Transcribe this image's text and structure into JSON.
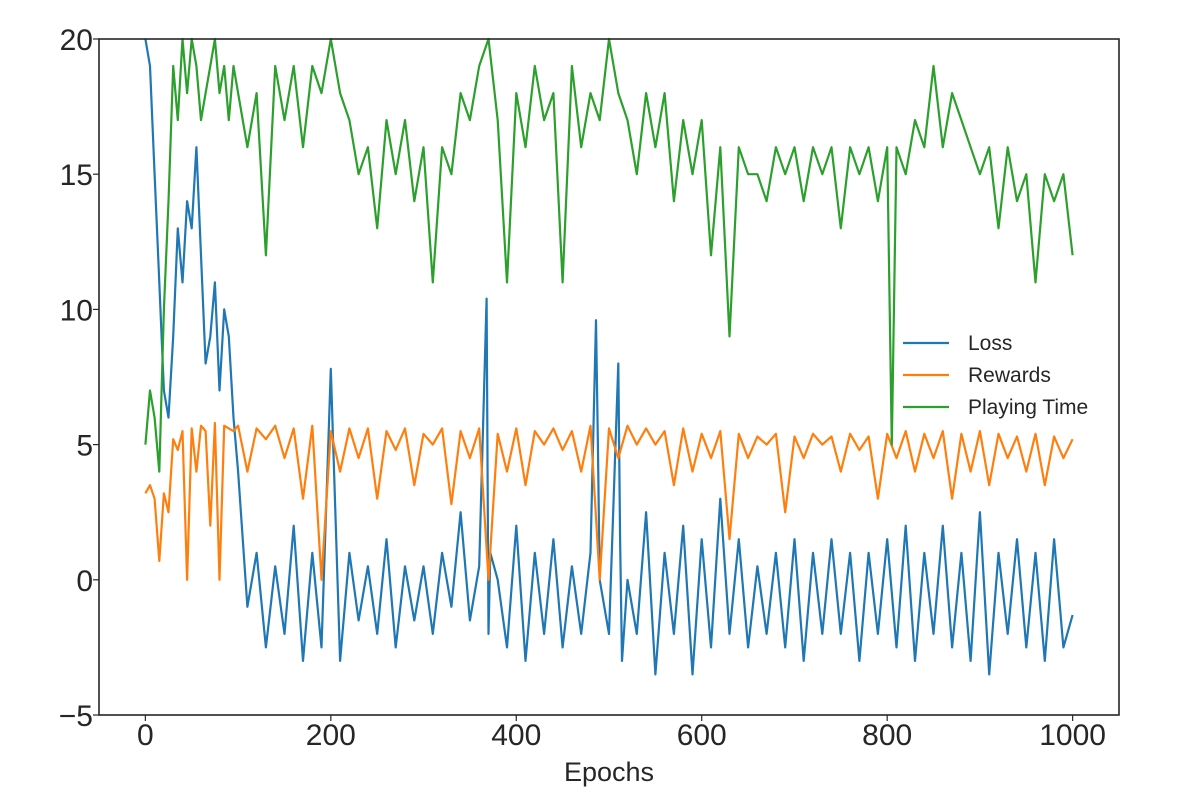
{
  "chart_data": {
    "type": "line",
    "title": "",
    "xlabel": "Epochs",
    "ylabel": "",
    "xlim": [
      -50,
      1050
    ],
    "ylim": [
      -5,
      20
    ],
    "xticks": [
      0,
      200,
      400,
      600,
      800,
      1000
    ],
    "yticks": [
      -5,
      0,
      5,
      10,
      15,
      20
    ],
    "xtick_labels": [
      "0",
      "200",
      "400",
      "600",
      "800",
      "1000"
    ],
    "ytick_labels": [
      "−5",
      "0",
      "5",
      "10",
      "15",
      "20"
    ],
    "grid": false,
    "legend_position": "center-right",
    "series": [
      {
        "name": "Loss",
        "color": "#1f77b4",
        "x": [
          0,
          5,
          10,
          15,
          20,
          25,
          30,
          35,
          40,
          45,
          50,
          55,
          60,
          65,
          70,
          75,
          80,
          85,
          90,
          95,
          100,
          110,
          120,
          130,
          140,
          150,
          160,
          170,
          180,
          190,
          200,
          210,
          220,
          230,
          240,
          250,
          260,
          270,
          280,
          290,
          300,
          310,
          320,
          330,
          340,
          350,
          360,
          368,
          370,
          372,
          380,
          390,
          400,
          410,
          420,
          430,
          440,
          450,
          460,
          470,
          480,
          486,
          488,
          490,
          500,
          510,
          512,
          514,
          520,
          530,
          540,
          550,
          560,
          570,
          580,
          590,
          600,
          610,
          620,
          630,
          640,
          650,
          660,
          670,
          680,
          690,
          700,
          710,
          720,
          730,
          740,
          750,
          760,
          770,
          780,
          790,
          800,
          810,
          820,
          830,
          840,
          850,
          860,
          870,
          880,
          890,
          900,
          910,
          920,
          930,
          940,
          950,
          960,
          970,
          980,
          990,
          1000
        ],
        "values": [
          20,
          19,
          15,
          11,
          7,
          6,
          9,
          13,
          11,
          14,
          13,
          16,
          12,
          8,
          9,
          11,
          7,
          10,
          9,
          6,
          4,
          -1,
          1,
          -2.5,
          0.5,
          -2,
          2,
          -3,
          1,
          -2.5,
          7.8,
          -3,
          1,
          -1.5,
          0.5,
          -2,
          1.5,
          -2.5,
          0.5,
          -1.5,
          0.5,
          -2,
          1,
          -1,
          2.5,
          -1.5,
          0.5,
          10.4,
          -2,
          1,
          0,
          -2.5,
          2,
          -3,
          1,
          -2,
          1.5,
          -2.5,
          0.5,
          -2,
          1,
          9.6,
          5,
          0,
          -2,
          8,
          1.5,
          -3,
          0,
          -2,
          2.5,
          -3.5,
          1,
          -2,
          2,
          -3.5,
          1.5,
          -2.5,
          3,
          -2,
          1.5,
          -2.5,
          0.5,
          -2,
          1,
          -2.5,
          1.5,
          -3,
          1,
          -2,
          1.5,
          -2,
          1,
          -3,
          1,
          -2,
          1.5,
          -2.5,
          2,
          -3,
          1,
          -2,
          2,
          -2.5,
          1,
          -3,
          2.5,
          -3.5,
          1,
          -2,
          1.5,
          -2.5,
          1,
          -3,
          1.5,
          -2.5,
          -1.3
        ]
      },
      {
        "name": "Rewards",
        "color": "#ff7f0e",
        "x": [
          0,
          5,
          10,
          15,
          20,
          25,
          30,
          35,
          40,
          45,
          50,
          55,
          60,
          65,
          70,
          75,
          80,
          85,
          90,
          95,
          100,
          110,
          120,
          130,
          140,
          150,
          160,
          170,
          180,
          190,
          200,
          210,
          220,
          230,
          240,
          250,
          260,
          270,
          280,
          290,
          300,
          310,
          320,
          330,
          340,
          350,
          360,
          370,
          380,
          390,
          400,
          410,
          420,
          430,
          440,
          450,
          460,
          470,
          480,
          490,
          500,
          510,
          520,
          530,
          540,
          550,
          560,
          570,
          580,
          590,
          600,
          610,
          620,
          630,
          640,
          650,
          660,
          670,
          680,
          690,
          700,
          710,
          720,
          730,
          740,
          750,
          760,
          770,
          780,
          790,
          800,
          810,
          820,
          830,
          840,
          850,
          860,
          870,
          880,
          890,
          900,
          910,
          920,
          930,
          940,
          950,
          960,
          970,
          980,
          990,
          1000
        ],
        "values": [
          3.2,
          3.5,
          3.0,
          0.7,
          3.2,
          2.5,
          5.2,
          4.8,
          5.5,
          0.0,
          5.6,
          4.0,
          5.7,
          5.5,
          2.0,
          5.8,
          0.0,
          5.7,
          5.6,
          5.5,
          5.7,
          4.0,
          5.6,
          5.2,
          5.7,
          4.5,
          5.6,
          3.0,
          5.7,
          0.0,
          5.5,
          4.0,
          5.6,
          4.5,
          5.6,
          3.0,
          5.5,
          4.8,
          5.6,
          3.5,
          5.4,
          5.0,
          5.6,
          2.8,
          5.5,
          4.5,
          5.6,
          0.0,
          5.4,
          4.0,
          5.6,
          3.5,
          5.5,
          5.0,
          5.6,
          4.8,
          5.5,
          4.0,
          5.7,
          0.0,
          5.6,
          4.5,
          5.7,
          5.0,
          5.6,
          5.0,
          5.5,
          3.5,
          5.6,
          4.0,
          5.4,
          4.5,
          5.5,
          1.5,
          5.4,
          4.5,
          5.3,
          5.0,
          5.4,
          2.5,
          5.3,
          4.5,
          5.4,
          5.0,
          5.3,
          4.0,
          5.4,
          4.8,
          5.3,
          3.0,
          5.4,
          4.5,
          5.5,
          4.0,
          5.4,
          4.5,
          5.5,
          3.0,
          5.4,
          4.0,
          5.5,
          3.5,
          5.4,
          4.5,
          5.3,
          4.0,
          5.4,
          3.5,
          5.3,
          4.5,
          5.2
        ]
      },
      {
        "name": "Playing Time",
        "color": "#2ca02c",
        "x": [
          0,
          5,
          10,
          15,
          20,
          25,
          30,
          35,
          40,
          45,
          50,
          55,
          60,
          65,
          70,
          75,
          80,
          85,
          90,
          95,
          100,
          110,
          120,
          130,
          140,
          150,
          160,
          170,
          180,
          190,
          200,
          210,
          220,
          230,
          240,
          250,
          260,
          270,
          280,
          290,
          300,
          310,
          320,
          330,
          340,
          350,
          360,
          370,
          380,
          390,
          400,
          410,
          420,
          430,
          440,
          450,
          460,
          470,
          480,
          490,
          500,
          510,
          520,
          530,
          540,
          550,
          560,
          570,
          580,
          590,
          600,
          610,
          620,
          630,
          640,
          650,
          660,
          670,
          680,
          690,
          700,
          710,
          720,
          730,
          740,
          750,
          760,
          770,
          780,
          790,
          800,
          805,
          810,
          820,
          830,
          840,
          850,
          860,
          870,
          880,
          890,
          900,
          910,
          920,
          930,
          940,
          950,
          960,
          970,
          980,
          990,
          1000
        ],
        "values": [
          5,
          7,
          6,
          4,
          10,
          14,
          19,
          17,
          20,
          18,
          20,
          19,
          17,
          18,
          19,
          20,
          18,
          19,
          17,
          19,
          18,
          16,
          18,
          12,
          19,
          17,
          19,
          16,
          19,
          18,
          20,
          18,
          17,
          15,
          16,
          13,
          17,
          15,
          17,
          14,
          16,
          11,
          16,
          15,
          18,
          17,
          19,
          20,
          17,
          11,
          18,
          16,
          19,
          17,
          18,
          11,
          19,
          16,
          18,
          17,
          20,
          18,
          17,
          15,
          18,
          16,
          18,
          14,
          17,
          15,
          17,
          12,
          16,
          9,
          16,
          15,
          15,
          14,
          16,
          15,
          16,
          14,
          16,
          15,
          16,
          13,
          16,
          15,
          16,
          14,
          16,
          5,
          16,
          15,
          17,
          16,
          19,
          16,
          18,
          17,
          16,
          15,
          16,
          13,
          16,
          14,
          15,
          11,
          15,
          14,
          15,
          12
        ]
      }
    ]
  }
}
